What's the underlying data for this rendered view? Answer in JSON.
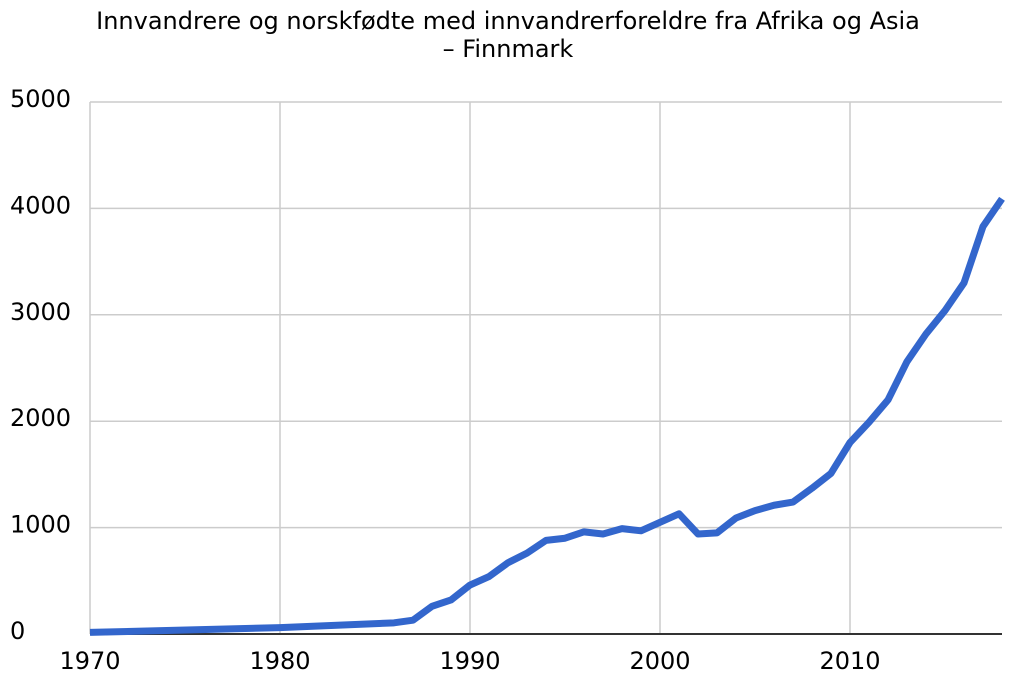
{
  "chart_data": {
    "type": "line",
    "title": [
      "Innvandrere og norskfødte med innvandrerforeldre fra Afrika og Asia",
      "– Finnmark"
    ],
    "x": [
      1970,
      1980,
      1986,
      1987,
      1988,
      1989,
      1990,
      1991,
      1992,
      1993,
      1994,
      1995,
      1996,
      1997,
      1998,
      1999,
      2000,
      2001,
      2002,
      2003,
      2004,
      2005,
      2006,
      2007,
      2008,
      2009,
      2010,
      2011,
      2012,
      2013,
      2014,
      2015,
      2016,
      2017,
      2018
    ],
    "series": [
      {
        "color": "#3366cc",
        "values": [
          15,
          60,
          105,
          130,
          260,
          320,
          460,
          540,
          670,
          760,
          880,
          900,
          960,
          940,
          990,
          970,
          1050,
          1130,
          940,
          950,
          1090,
          1160,
          1210,
          1240,
          1370,
          1510,
          1800,
          1990,
          2200,
          2560,
          2820,
          3040,
          3300,
          3830,
          4090
        ]
      }
    ],
    "xlim": [
      1970,
      2018
    ],
    "xticks": [
      1970,
      1980,
      1990,
      2000,
      2010
    ],
    "ylim": [
      0,
      5000
    ],
    "yticks": [
      0,
      1000,
      2000,
      3000,
      4000,
      5000
    ],
    "grid": true
  }
}
